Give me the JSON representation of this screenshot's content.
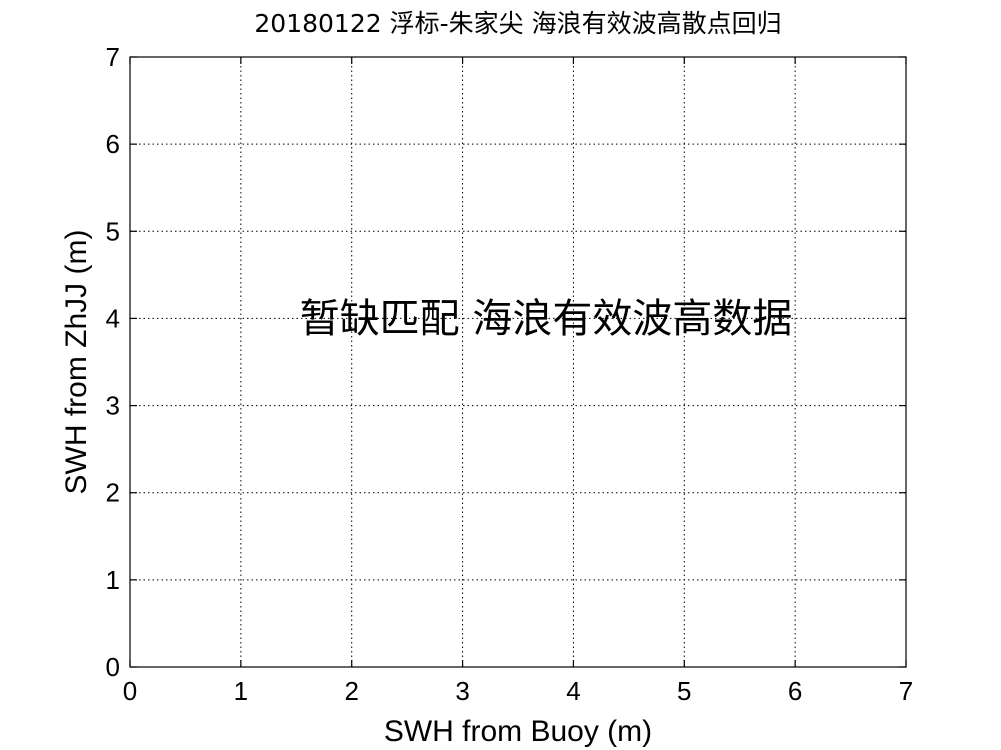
{
  "chart_data": {
    "type": "scatter",
    "title": "20180122 浮标-朱家尖 海浪有效波高散点回归",
    "xlabel": "SWH from Buoy (m)",
    "ylabel": "SWH from ZhJJ (m)",
    "xlim": [
      0,
      7
    ],
    "ylim": [
      0,
      7
    ],
    "xticks": [
      0,
      1,
      2,
      3,
      4,
      5,
      6,
      7
    ],
    "yticks": [
      0,
      1,
      2,
      3,
      4,
      5,
      6,
      7
    ],
    "xticklabels": [
      "0",
      "1",
      "2",
      "3",
      "4",
      "5",
      "6",
      "7"
    ],
    "yticklabels": [
      "0",
      "1",
      "2",
      "3",
      "4",
      "5",
      "6",
      "7"
    ],
    "grid": true,
    "series": [],
    "annotation": "暂缺匹配 海浪有效波高数据",
    "colors": {
      "axis": "#000000",
      "grid": "#000000",
      "background": "#ffffff"
    }
  }
}
